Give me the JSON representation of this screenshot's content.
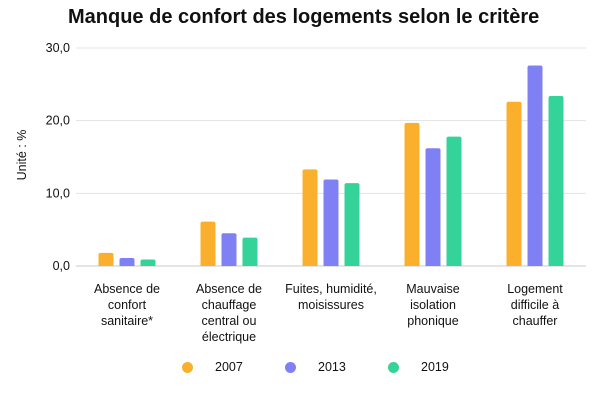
{
  "chart_data": {
    "type": "bar",
    "title": "Manque de confort des logements selon le critère",
    "ylabel": "Unité : %",
    "xlabel": "",
    "ylim": [
      0,
      30
    ],
    "yticks": [
      "0,0",
      "10,0",
      "20,0",
      "30,0"
    ],
    "ytick_values": [
      0,
      10,
      20,
      30
    ],
    "grid": true,
    "legend_position": "bottom",
    "categories": [
      "Absence de\nconfort\nsanitaire*",
      "Absence de\nchauffage\ncentral ou\nélectrique",
      "Fuites, humidité,\nmoisissures",
      "Mauvaise\nisolation\nphonique",
      "Logement\ndifficile à\nchauffer"
    ],
    "series": [
      {
        "name": "2007",
        "color": "#FBB02D",
        "values": [
          1.8,
          6.1,
          13.3,
          19.7,
          22.6
        ]
      },
      {
        "name": "2013",
        "color": "#8080F5",
        "values": [
          1.1,
          4.5,
          11.9,
          16.2,
          27.6
        ]
      },
      {
        "name": "2019",
        "color": "#34D399",
        "values": [
          0.9,
          3.9,
          11.4,
          17.8,
          23.4
        ]
      }
    ]
  }
}
